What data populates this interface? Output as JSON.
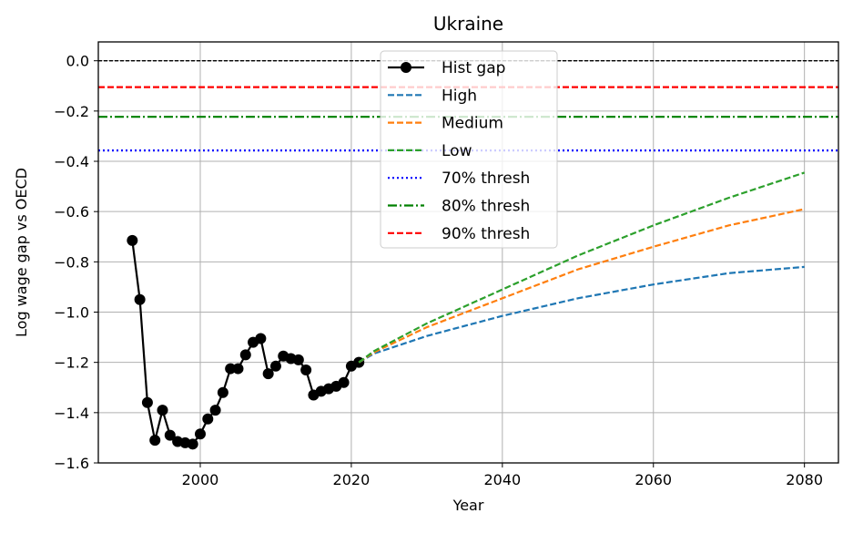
{
  "chart_data": {
    "type": "line",
    "title": "Ukraine",
    "xlabel": "Year",
    "ylabel": "Log wage gap vs OECD",
    "xlim": [
      1986.5,
      2084.5
    ],
    "ylim": [
      -1.6,
      0.075
    ],
    "xticks": [
      2000,
      2020,
      2040,
      2060,
      2080
    ],
    "yticks": [
      0.0,
      -0.2,
      -0.4,
      -0.6,
      -0.8,
      -1.0,
      -1.2,
      -1.4,
      -1.6
    ],
    "ytick_labels": [
      "0.0",
      "−0.2",
      "−0.4",
      "−0.6",
      "−0.8",
      "−1.0",
      "−1.2",
      "−1.4",
      "−1.6"
    ],
    "grid": true,
    "legend_position": "top-center",
    "series": [
      {
        "name": "Hist gap",
        "style": "solid-marker",
        "color": "#000000",
        "x": [
          1991,
          1992,
          1993,
          1994,
          1995,
          1996,
          1997,
          1998,
          1999,
          2000,
          2001,
          2002,
          2003,
          2004,
          2005,
          2006,
          2007,
          2008,
          2009,
          2010,
          2011,
          2012,
          2013,
          2014,
          2015,
          2016,
          2017,
          2018,
          2019,
          2020,
          2021
        ],
        "y": [
          -0.715,
          -0.95,
          -1.36,
          -1.51,
          -1.39,
          -1.49,
          -1.515,
          -1.52,
          -1.525,
          -1.485,
          -1.425,
          -1.39,
          -1.32,
          -1.225,
          -1.225,
          -1.17,
          -1.12,
          -1.105,
          -1.245,
          -1.215,
          -1.175,
          -1.185,
          -1.19,
          -1.23,
          -1.33,
          -1.315,
          -1.305,
          -1.295,
          -1.28,
          -1.215,
          -1.2
        ]
      },
      {
        "name": "High",
        "style": "dashed",
        "color": "#1f77b4",
        "x": [
          2021,
          2023,
          2030,
          2040,
          2050,
          2060,
          2070,
          2080
        ],
        "y": [
          -1.2,
          -1.165,
          -1.095,
          -1.015,
          -0.945,
          -0.89,
          -0.845,
          -0.82
        ]
      },
      {
        "name": "Medium",
        "style": "dashed",
        "color": "#ff7f0e",
        "x": [
          2021,
          2023,
          2030,
          2040,
          2050,
          2060,
          2070,
          2080
        ],
        "y": [
          -1.2,
          -1.16,
          -1.06,
          -0.945,
          -0.83,
          -0.74,
          -0.655,
          -0.59
        ]
      },
      {
        "name": "Low",
        "style": "dashed",
        "color": "#2ca02c",
        "x": [
          2021,
          2023,
          2030,
          2040,
          2050,
          2060,
          2070,
          2080
        ],
        "y": [
          -1.2,
          -1.155,
          -1.045,
          -0.91,
          -0.775,
          -0.655,
          -0.545,
          -0.445
        ]
      },
      {
        "name": "70% thresh",
        "style": "dotted",
        "color": "#0000ff",
        "hline": -0.357
      },
      {
        "name": "80% thresh",
        "style": "dashdot",
        "color": "#008000",
        "hline": -0.223
      },
      {
        "name": "90% thresh",
        "style": "dashed",
        "color": "#ff0000",
        "hline": -0.105
      }
    ],
    "reference_line": {
      "y": 0.0,
      "color": "#000000",
      "style": "dashed"
    }
  }
}
